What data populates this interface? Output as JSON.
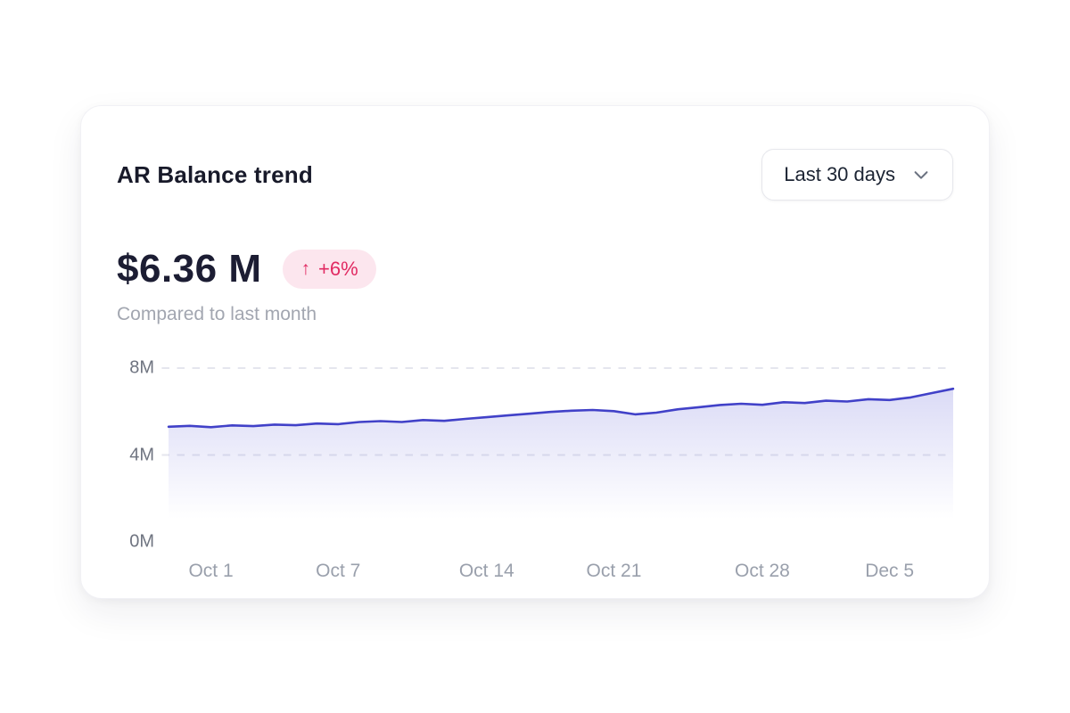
{
  "card": {
    "title": "AR Balance trend",
    "dropdown": {
      "label": "Last 30 days",
      "icon": "chevron-down-icon"
    },
    "metric": {
      "value": "$6.36 M",
      "badge_arrow": "↑",
      "badge": "+6%",
      "subtitle": "Compared to last month"
    }
  },
  "colors": {
    "line": "#4141c8",
    "area_top": "#5b5bd6",
    "grid": "#e5e6ee",
    "badge_bg": "#fce6ee",
    "badge_text": "#e12a62"
  },
  "chart_data": {
    "type": "area",
    "title": "AR Balance trend",
    "unit": "M USD",
    "ylim": [
      0,
      8
    ],
    "grid_values": [
      8,
      4
    ],
    "grid_style": "dashed",
    "legend": "none",
    "y_ticks": [
      {
        "label": "8M",
        "value": 8
      },
      {
        "label": "4M",
        "value": 4
      },
      {
        "label": "0M",
        "value": 0
      }
    ],
    "x_ticks": [
      {
        "label": "Oct 1",
        "index": 2
      },
      {
        "label": "Oct 7",
        "index": 8
      },
      {
        "label": "Oct 14",
        "index": 15
      },
      {
        "label": "Oct 21",
        "index": 21
      },
      {
        "label": "Oct 28",
        "index": 28
      },
      {
        "label": "Dec 5",
        "index": 34
      }
    ],
    "values": [
      5.3,
      5.34,
      5.28,
      5.36,
      5.33,
      5.4,
      5.37,
      5.45,
      5.42,
      5.52,
      5.56,
      5.52,
      5.61,
      5.57,
      5.66,
      5.74,
      5.82,
      5.9,
      5.98,
      6.04,
      6.07,
      6.02,
      5.87,
      5.95,
      6.1,
      6.2,
      6.3,
      6.36,
      6.31,
      6.43,
      6.39,
      6.5,
      6.46,
      6.57,
      6.53,
      6.65,
      6.85,
      7.05
    ]
  }
}
